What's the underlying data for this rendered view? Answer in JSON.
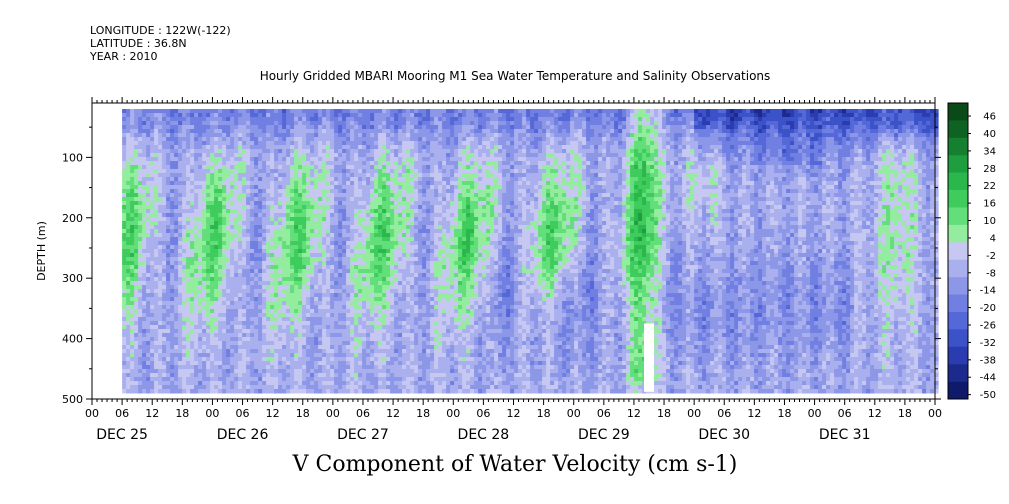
{
  "header": {
    "longitude": "LONGITUDE : 122W(-122)",
    "latitude": "LATITUDE : 36.8N",
    "year": "YEAR : 2010"
  },
  "chart_data": {
    "type": "heatmap",
    "title": "Hourly Gridded MBARI Mooring M1 Sea Water Temperature and Salinity Observations",
    "xlabel": "V Component of Water Velocity (cm s-1)",
    "ylabel": "DEPTH (m)",
    "ylim": [
      500,
      10
    ],
    "y_ticks": [
      100,
      200,
      300,
      400,
      500
    ],
    "x_hour_ticks": [
      "00",
      "06",
      "12",
      "18",
      "00",
      "06",
      "12",
      "18",
      "00",
      "06",
      "12",
      "18",
      "00",
      "06",
      "12",
      "18",
      "00",
      "06",
      "12",
      "18",
      "00",
      "06",
      "12",
      "18",
      "00",
      "06",
      "12",
      "18",
      "00"
    ],
    "x_day_labels": [
      "DEC 25",
      "DEC 26",
      "DEC 27",
      "DEC 28",
      "DEC 29",
      "DEC 30",
      "DEC 31"
    ],
    "data_extent": {
      "start": "DEC 25 06:00",
      "end": "DEC 31 24:00",
      "top_depth_m": 20,
      "bottom_depth_m": 488
    },
    "colorbar": {
      "levels": [
        46,
        40,
        34,
        28,
        22,
        16,
        10,
        4,
        -2,
        -8,
        -14,
        -20,
        -26,
        -32,
        -38,
        -44,
        -50
      ],
      "colors": [
        "#0a4a18",
        "#0f6322",
        "#158030",
        "#1e9e3e",
        "#2ab84c",
        "#3fcc5c",
        "#62de7a",
        "#94ec9e",
        "#c6c8f2",
        "#aab0ee",
        "#8d97e8",
        "#717fe2",
        "#5468d8",
        "#3b52c8",
        "#2a3cb0",
        "#1c2a8e",
        "#0f1a6a"
      ]
    },
    "colors": {
      "positive": "#3fcc5c",
      "negative": "#5468d8",
      "background": "#ffffff"
    }
  }
}
